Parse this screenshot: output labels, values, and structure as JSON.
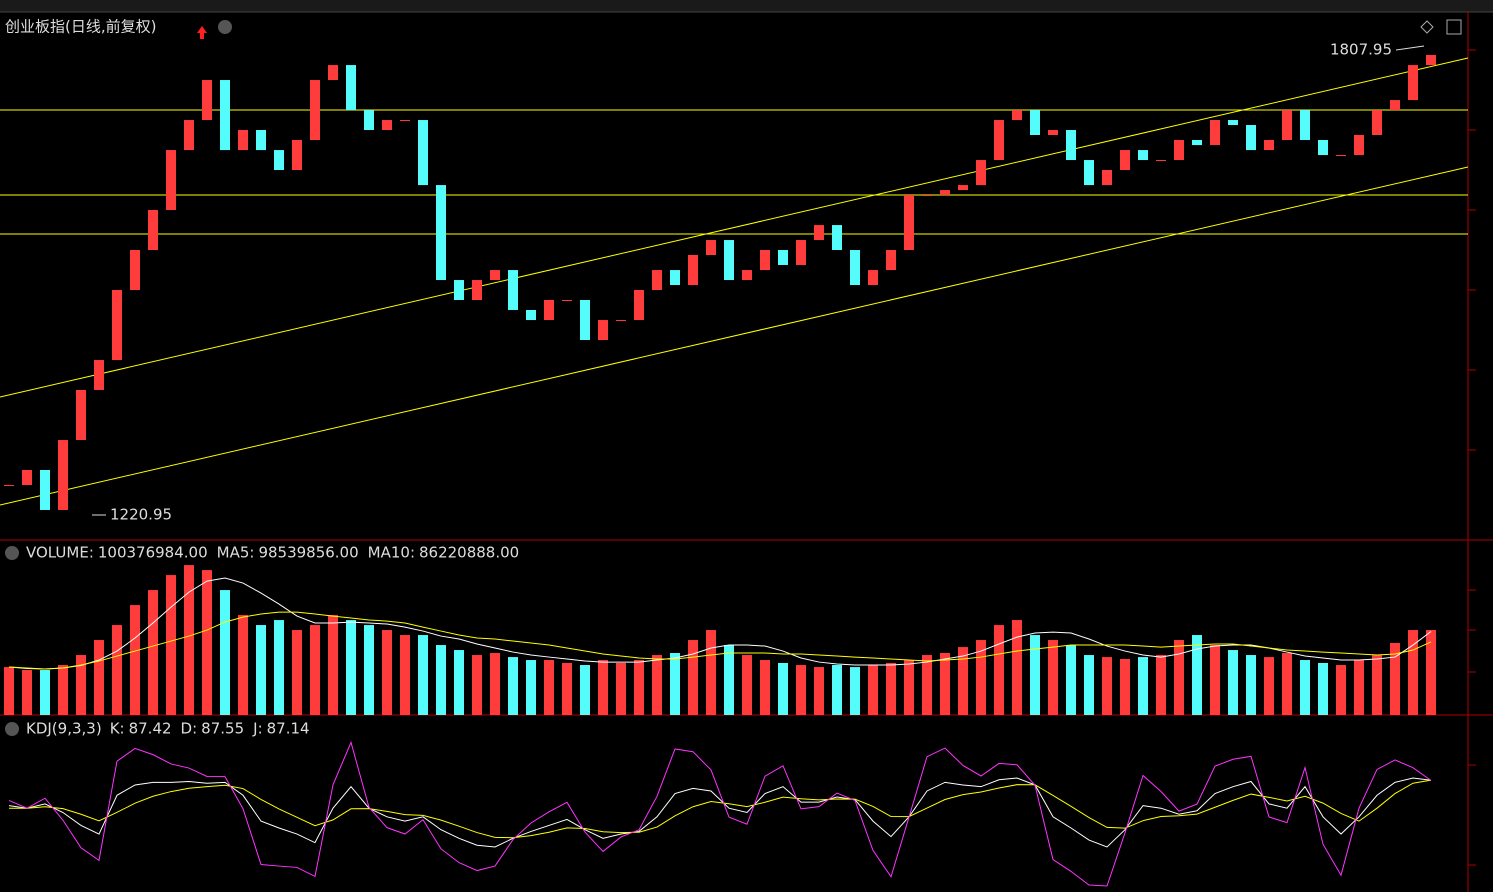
{
  "chart_data": [
    {
      "type": "candlestick",
      "title": "创业板指(日线,前复权)",
      "close": [
        1258.8,
        1277.8,
        1227.3,
        1315.6,
        1378.8,
        1416.6,
        1505.0,
        1555.5,
        1606.0,
        1681.7,
        1719.6,
        1770.1,
        1681.7,
        1707.0,
        1681.7,
        1656.5,
        1694.4,
        1770.1,
        1789.0,
        1732.2,
        1707.0,
        1719.6,
        1719.6,
        1637.5,
        1517.6,
        1492.4,
        1517.6,
        1530.2,
        1479.8,
        1467.1,
        1492.4,
        1492.4,
        1441.9,
        1467.1,
        1467.1,
        1505.0,
        1530.2,
        1511.3,
        1549.2,
        1568.1,
        1517.6,
        1530.2,
        1555.5,
        1536.6,
        1568.1,
        1587.0,
        1555.5,
        1511.3,
        1530.2,
        1555.5,
        1624.9,
        1624.9,
        1631.2,
        1637.5,
        1669.1,
        1719.6,
        1732.2,
        1700.7,
        1707.0,
        1669.1,
        1637.5,
        1656.5,
        1681.7,
        1669.1,
        1669.1,
        1694.4,
        1688.0,
        1719.6,
        1713.3,
        1681.7,
        1694.4,
        1732.2,
        1694.4,
        1675.4,
        1675.4,
        1700.7,
        1732.2,
        1744.8,
        1789.0,
        1801.7
      ],
      "ylim": [
        1189.4,
        1852.2
      ],
      "hlines": [
        1732.2,
        1624.9,
        1575.7
      ],
      "annotations": [
        1807.95,
        1220.95
      ],
      "up_color": "#ff3c3c",
      "down_color": "#54fcfc",
      "line_color": "#ffff00"
    },
    {
      "type": "bar",
      "separator": ":",
      "series": [
        {
          "name": "VOLUME",
          "color": "#dddddd",
          "readout": "100376984.00",
          "values": [
            56600000,
            53100000,
            53100000,
            59000000,
            70800000,
            88500000,
            106200000,
            129800000,
            147500000,
            165200000,
            177000000,
            171100000,
            147500000,
            118000000,
            106200000,
            112100000,
            100300000,
            106200000,
            118000000,
            112100000,
            106200000,
            100300000,
            94400000,
            94400000,
            82600000,
            76700000,
            70800000,
            73200000,
            68400000,
            64900000,
            64900000,
            61400000,
            59000000,
            64900000,
            61400000,
            64900000,
            70800000,
            73200000,
            88500000,
            100300000,
            82600000,
            70800000,
            64900000,
            61400000,
            59000000,
            56600000,
            59000000,
            56600000,
            59000000,
            61400000,
            64900000,
            70800000,
            73200000,
            80200000,
            88500000,
            106200000,
            112100000,
            94400000,
            88500000,
            82600000,
            70800000,
            68400000,
            66100000,
            68400000,
            70800000,
            88500000,
            94400000,
            82600000,
            76700000,
            70800000,
            68400000,
            73200000,
            64900000,
            61400000,
            59000000,
            64900000,
            70800000,
            85000000,
            100300000,
            100376984
          ]
        },
        {
          "name": "MA5",
          "color": "#ffffff",
          "readout": "98539856.00",
          "values": [
            56600000,
            54900000,
            54300000,
            55500000,
            58500000,
            64900000,
            75500000,
            90900000,
            108600000,
            127400000,
            145100000,
            158100000,
            161700000,
            155800000,
            144000000,
            131000000,
            116800000,
            108600000,
            108600000,
            109700000,
            108600000,
            107400000,
            103800000,
            99100000,
            93200000,
            89700000,
            83800000,
            79100000,
            74300000,
            70800000,
            68400000,
            66100000,
            63700000,
            62500000,
            62500000,
            62500000,
            64900000,
            67300000,
            72000000,
            79100000,
            82600000,
            82600000,
            81400000,
            75500000,
            67300000,
            62500000,
            60200000,
            59000000,
            59000000,
            59000000,
            60200000,
            62500000,
            66100000,
            69600000,
            75500000,
            83800000,
            92000000,
            96800000,
            97900000,
            96800000,
            89700000,
            81400000,
            75500000,
            70800000,
            68400000,
            72000000,
            77900000,
            81400000,
            82600000,
            82600000,
            79100000,
            74300000,
            69600000,
            67300000,
            64900000,
            64900000,
            66100000,
            68400000,
            82600000,
            98539856
          ]
        },
        {
          "name": "MA10",
          "color": "#ffff00",
          "readout": "86220888.00",
          "values": [
            56600000,
            55500000,
            54300000,
            55500000,
            59000000,
            63700000,
            69600000,
            75500000,
            81400000,
            87300000,
            93200000,
            100300000,
            109700000,
            115600000,
            119200000,
            121500000,
            121500000,
            119200000,
            116800000,
            114500000,
            112100000,
            110900000,
            108600000,
            103800000,
            99100000,
            94400000,
            90900000,
            89700000,
            87300000,
            85000000,
            82600000,
            79100000,
            75500000,
            72000000,
            69600000,
            67300000,
            66100000,
            66100000,
            68400000,
            70800000,
            73200000,
            73200000,
            73200000,
            72000000,
            72000000,
            70800000,
            69600000,
            68400000,
            67300000,
            66100000,
            64900000,
            63700000,
            64900000,
            66100000,
            68400000,
            72000000,
            75500000,
            77900000,
            80200000,
            82600000,
            82600000,
            82600000,
            82600000,
            81400000,
            80200000,
            81400000,
            82600000,
            83800000,
            83800000,
            81400000,
            79100000,
            76700000,
            75500000,
            74300000,
            73200000,
            72000000,
            70800000,
            72000000,
            76700000,
            86220888
          ]
        }
      ],
      "ylim": [
        0,
        183000000
      ]
    },
    {
      "type": "line",
      "title": "KDJ(9,3,3)",
      "separator": ":",
      "series": [
        {
          "name": "K",
          "color": "#ffffff",
          "values": [
            58,
            55,
            60,
            50,
            35,
            25,
            70,
            82,
            85,
            85,
            86,
            84,
            85,
            70,
            40,
            32,
            25,
            15,
            55,
            80,
            55,
            45,
            40,
            45,
            30,
            20,
            12,
            10,
            20,
            28,
            35,
            42,
            30,
            20,
            25,
            28,
            45,
            72,
            78,
            75,
            55,
            50,
            72,
            80,
            62,
            62,
            68,
            65,
            40,
            22,
            45,
            75,
            85,
            82,
            80,
            88,
            90,
            82,
            45,
            32,
            18,
            10,
            30,
            58,
            55,
            48,
            52,
            72,
            80,
            86,
            60,
            55,
            80,
            45,
            25,
            45,
            70,
            85,
            90,
            87.42
          ]
        },
        {
          "name": "D",
          "color": "#ffff00",
          "values": [
            55,
            55,
            56.7,
            54.5,
            48,
            40.3,
            50.2,
            60.8,
            68.9,
            74.3,
            78.2,
            80.1,
            81.7,
            77.8,
            65.2,
            54.1,
            44.4,
            34.6,
            41.4,
            54.3,
            54.5,
            51.3,
            47.5,
            46.7,
            41.1,
            34.1,
            26.7,
            21.1,
            20.7,
            23.1,
            27.1,
            32.1,
            31.4,
            27.6,
            26.7,
            27.1,
            33.1,
            46.1,
            56.7,
            62.8,
            60.2,
            56.8,
            61.9,
            67.9,
            65.9,
            64.6,
            65.7,
            65.5,
            57,
            45.3,
            45.2,
            55.1,
            65.1,
            70.7,
            73.8,
            78.5,
            82.3,
            82.2,
            69.8,
            57.2,
            44.1,
            32.7,
            31.8,
            40.5,
            45.3,
            46.2,
            48.1,
            56.1,
            64.1,
            71.4,
            67.6,
            63.4,
            68.9,
            60.9,
            48.9,
            40,
            55,
            72,
            84,
            87.55
          ]
        },
        {
          "name": "J",
          "color": "#ff33ff",
          "values": [
            64,
            55,
            66.6,
            41,
            9,
            -5.6,
            109.6,
            124.4,
            117.2,
            106.4,
            101.6,
            91.8,
            91.6,
            54.4,
            -10.4,
            -12.2,
            -13.8,
            -24.2,
            82.2,
            131.4,
            56,
            32.4,
            25,
            41.6,
            7.8,
            -8.2,
            -17.4,
            -12.2,
            18.6,
            37.8,
            50.8,
            61.8,
            27.2,
            4.8,
            21.6,
            29.8,
            68.8,
            123.8,
            120.6,
            99.4,
            44.6,
            36.4,
            92.2,
            104.2,
            54.2,
            56.8,
            72.6,
            64,
            6,
            -24.6,
            44.6,
            114.8,
            124.8,
            104.6,
            92.4,
            107,
            105.4,
            81.6,
            -4.6,
            -18.4,
            -34.2,
            -35.4,
            26.4,
            93,
            74.4,
            51.6,
            59.8,
            103.8,
            111.8,
            115.2,
            44.8,
            38.2,
            102.2,
            13.2,
            -22.8,
            55,
            100,
            111,
            102,
            87.14
          ]
        }
      ],
      "ylim": [
        -40,
        140
      ]
    }
  ]
}
